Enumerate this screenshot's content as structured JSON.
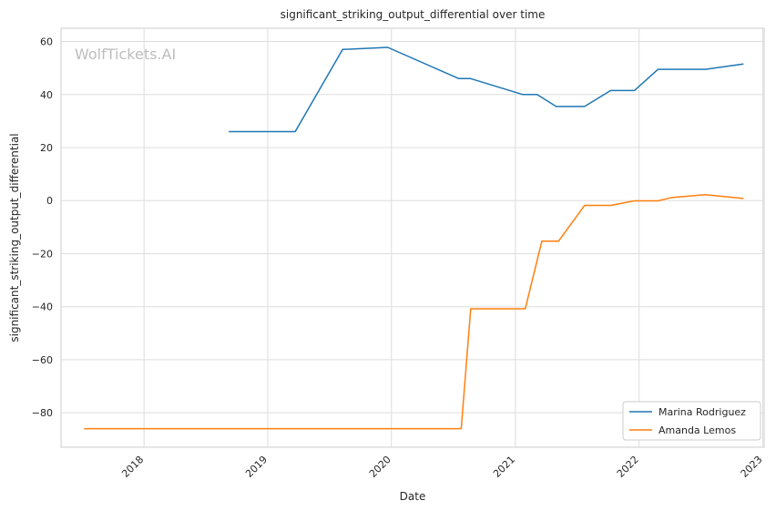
{
  "chart_data": {
    "type": "line",
    "title": "significant_striking_output_differential over time",
    "xlabel": "Date",
    "ylabel": "significant_striking_output_differential",
    "watermark": "WolfTickets.AI",
    "xlim": [
      "2017-05-01",
      "2023-01-05"
    ],
    "ylim": [
      -93,
      65
    ],
    "x_ticks": [
      "2018",
      "2019",
      "2020",
      "2021",
      "2022",
      "2023"
    ],
    "y_ticks": [
      -80,
      -60,
      -40,
      -20,
      0,
      20,
      40,
      60
    ],
    "grid": true,
    "legend_position": "bottom-right",
    "series": [
      {
        "name": "Marina Rodriguez",
        "color": "#1f77b4",
        "points": [
          [
            "2018-09-08",
            26.0
          ],
          [
            "2019-03-23",
            26.0
          ],
          [
            "2019-08-10",
            57.0
          ],
          [
            "2019-12-21",
            57.8
          ],
          [
            "2020-07-18",
            46.0
          ],
          [
            "2020-08-22",
            46.0
          ],
          [
            "2021-01-23",
            40.0
          ],
          [
            "2021-03-06",
            40.0
          ],
          [
            "2021-05-01",
            35.5
          ],
          [
            "2021-07-24",
            35.5
          ],
          [
            "2021-10-09",
            41.5
          ],
          [
            "2021-12-18",
            41.5
          ],
          [
            "2022-02-26",
            49.5
          ],
          [
            "2022-07-16",
            49.5
          ],
          [
            "2022-11-05",
            51.5
          ]
        ]
      },
      {
        "name": "Amanda Lemos",
        "color": "#ff7f0e",
        "points": [
          [
            "2017-07-08",
            -86.0
          ],
          [
            "2020-07-25",
            -86.0
          ],
          [
            "2020-08-22",
            -40.8
          ],
          [
            "2021-01-30",
            -40.8
          ],
          [
            "2021-03-20",
            -15.3
          ],
          [
            "2021-05-08",
            -15.3
          ],
          [
            "2021-07-24",
            -1.8
          ],
          [
            "2021-10-09",
            -1.8
          ],
          [
            "2021-12-18",
            -0.1
          ],
          [
            "2022-02-26",
            -0.1
          ],
          [
            "2022-04-09",
            1.2
          ],
          [
            "2022-07-16",
            2.2
          ],
          [
            "2022-11-05",
            0.8
          ]
        ]
      }
    ]
  }
}
